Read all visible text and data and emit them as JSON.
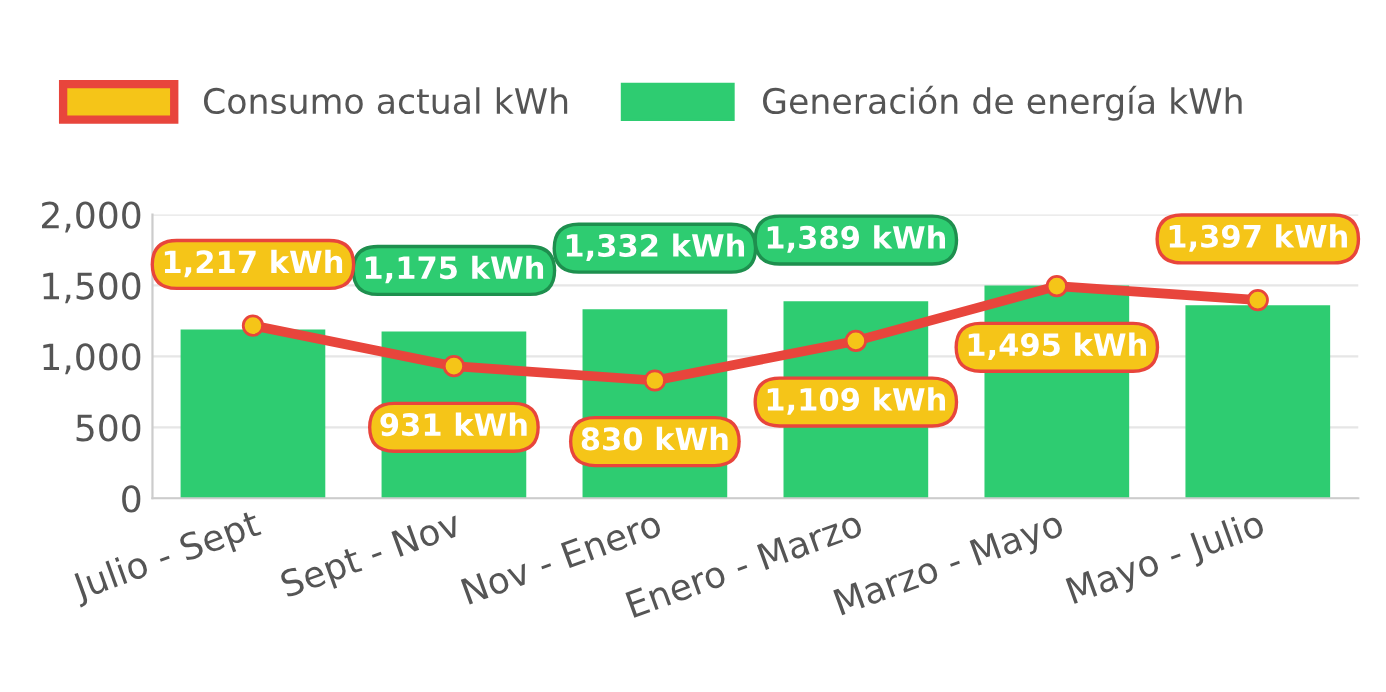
{
  "chart_data": {
    "type": "bar",
    "categories": [
      "Julio - Sept",
      "Sept - Nov",
      "Nov - Enero",
      "Enero - Marzo",
      "Marzo - Mayo",
      "Mayo - Julio"
    ],
    "series": [
      {
        "name": "Consumo actual kWh",
        "type": "line",
        "color": "#e8453c",
        "values": [
          1217,
          931,
          830,
          1109,
          1495,
          1397
        ],
        "value_labels": [
          "1,217 kWh",
          "931 kWh",
          "830 kWh",
          "1,109 kWh",
          "1,495 kWh",
          "1,397 kWh"
        ]
      },
      {
        "name": "Generación de energía kWh",
        "color": "#2ecc71",
        "values": [
          1190,
          1175,
          1332,
          1389,
          1500,
          1360
        ],
        "value_labels": [
          null,
          "1,175 kWh",
          "1,332 kWh",
          "1,389 kWh",
          null,
          null
        ]
      }
    ],
    "ylim": [
      0,
      2000
    ],
    "yticks": [
      0,
      500,
      {
        "value": 1000,
        "label": "1,000"
      },
      {
        "value": 1500,
        "label": "1,500"
      },
      {
        "value": 2000,
        "label": "2,000"
      }
    ],
    "grid": "y",
    "legend": "top",
    "marker": "circle"
  }
}
